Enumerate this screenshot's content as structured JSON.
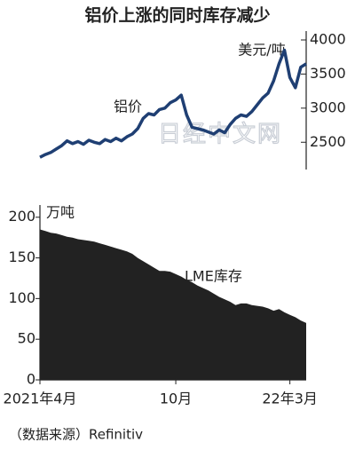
{
  "chart_data": {
    "type": "line",
    "title": "铝价上涨的同时库存减少",
    "y_label": "万吨",
    "y2_label": "美元/吨",
    "watermark": "日经中文网",
    "source": "（数据来源）Refinitiv",
    "categories": [
      "2021年4月",
      null,
      null,
      null,
      null,
      null,
      null,
      null,
      null,
      null,
      null,
      null,
      null,
      null,
      null,
      null,
      null,
      null,
      null,
      null,
      null,
      null,
      null,
      null,
      null,
      "10月",
      null,
      null,
      null,
      null,
      null,
      null,
      null,
      null,
      null,
      null,
      null,
      null,
      null,
      null,
      null,
      null,
      null,
      null,
      null,
      null,
      "22年3月",
      null,
      null,
      null
    ],
    "series": [
      {
        "name": "铝价",
        "type": "line",
        "axis": "y2",
        "color": "#1f3f73",
        "values": [
          2280,
          2320,
          2350,
          2400,
          2450,
          2520,
          2480,
          2510,
          2470,
          2530,
          2500,
          2480,
          2540,
          2510,
          2560,
          2520,
          2580,
          2620,
          2700,
          2850,
          2920,
          2900,
          2980,
          3000,
          3080,
          3120,
          3190,
          2900,
          2720,
          2700,
          2680,
          2650,
          2620,
          2680,
          2640,
          2760,
          2850,
          2900,
          2880,
          2950,
          3050,
          3150,
          3220,
          3400,
          3650,
          3850,
          3450,
          3300,
          3600,
          3650
        ]
      },
      {
        "name": "LME库存",
        "type": "area",
        "axis": "y",
        "color": "#222222",
        "values": [
          185,
          183,
          181,
          180,
          178,
          176,
          175,
          173,
          172,
          171,
          170,
          168,
          166,
          164,
          162,
          160,
          158,
          155,
          150,
          146,
          142,
          138,
          134,
          134,
          133,
          130,
          127,
          123,
          120,
          116,
          113,
          110,
          106,
          102,
          99,
          96,
          92,
          94,
          94,
          92,
          91,
          90,
          88,
          85,
          87,
          83,
          80,
          77,
          73,
          70
        ]
      }
    ],
    "ylim": [
      0,
      215
    ],
    "yticks": [
      0,
      50,
      100,
      150,
      200
    ],
    "y2lim": [
      2100,
      4000
    ],
    "y2ticks": [
      2500,
      3000,
      3500,
      4000
    ]
  }
}
